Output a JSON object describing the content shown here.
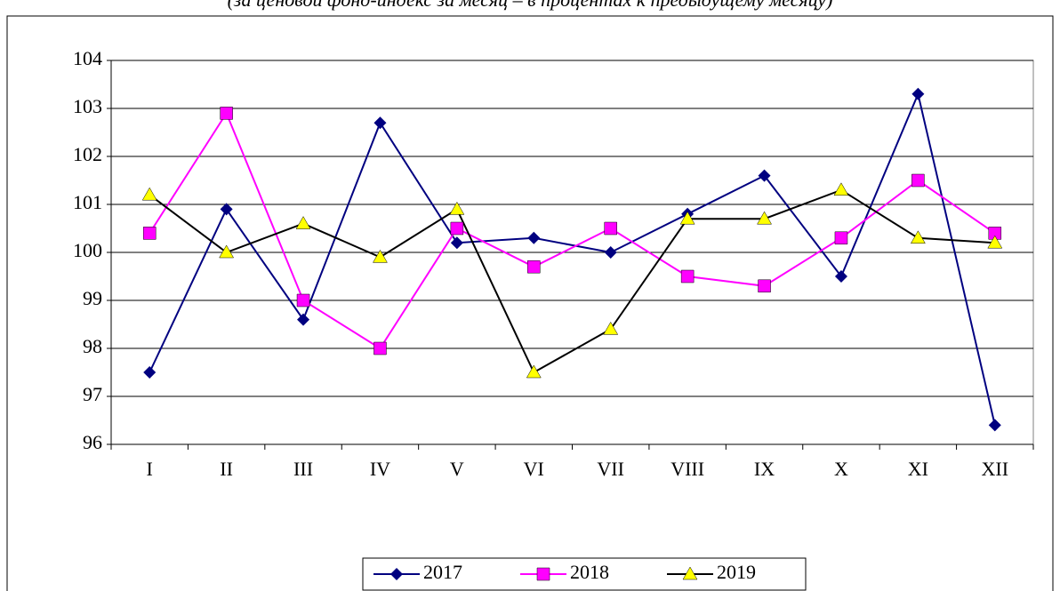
{
  "chart_data": {
    "type": "line",
    "subtitle": "(за ценовой фонд-индекс за месяц – в процентах к предыдущему месяцу)",
    "categories": [
      "I",
      "II",
      "III",
      "IV",
      "V",
      "VI",
      "VII",
      "VIII",
      "IX",
      "X",
      "XI",
      "XII"
    ],
    "series": [
      {
        "name": "2017",
        "color": "#000080",
        "line_color": "#000080",
        "marker": "diamond",
        "values": [
          97.5,
          100.9,
          98.6,
          102.7,
          100.2,
          100.3,
          100.0,
          100.8,
          101.6,
          99.5,
          103.3,
          96.4
        ]
      },
      {
        "name": "2018",
        "color": "#ff00ff",
        "line_color": "#ff00ff",
        "marker": "square",
        "values": [
          100.4,
          102.9,
          99.0,
          98.0,
          100.5,
          99.7,
          100.5,
          99.5,
          99.3,
          100.3,
          101.5,
          100.4
        ]
      },
      {
        "name": "2019",
        "color": "#ffff00",
        "line_color": "#000000",
        "marker": "triangle",
        "values": [
          101.2,
          100.0,
          100.6,
          99.9,
          100.9,
          97.5,
          98.4,
          100.7,
          100.7,
          101.3,
          100.3,
          100.2
        ]
      }
    ],
    "ylim": [
      96,
      104
    ],
    "yticks": [
      96,
      97,
      98,
      99,
      100,
      101,
      102,
      103,
      104
    ],
    "grid": true,
    "legend": "bottom"
  }
}
